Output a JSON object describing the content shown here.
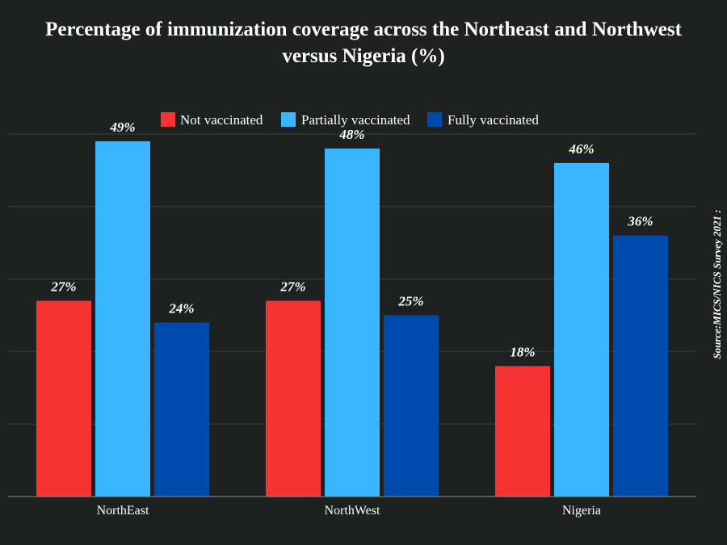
{
  "chart_data": {
    "type": "bar",
    "title_lines": [
      "Percentage of  immunization coverage across the Northeast and Northwest",
      "versus Nigeria (%)"
    ],
    "categories": [
      "NorthEast",
      "NorthWest",
      "Nigeria"
    ],
    "series": [
      {
        "name": "Not vaccinated",
        "color": "#f53333",
        "values": [
          27,
          27,
          18
        ],
        "labels": [
          "27%",
          "27%",
          "18%"
        ]
      },
      {
        "name": "Partially vaccinated",
        "color": "#38b6ff",
        "values": [
          49,
          48,
          46
        ],
        "labels": [
          "49%",
          "48%",
          "46%"
        ]
      },
      {
        "name": "Fully vaccinated",
        "color": "#004aad",
        "values": [
          24,
          25,
          36
        ],
        "labels": [
          "24%",
          "25%",
          "36%"
        ]
      }
    ],
    "xlabel": "",
    "ylabel": "",
    "ylim": [
      0,
      50
    ],
    "grid": true,
    "legend_position": "top-center",
    "source": "Source:MICS/NICS Survey 2021 :"
  }
}
